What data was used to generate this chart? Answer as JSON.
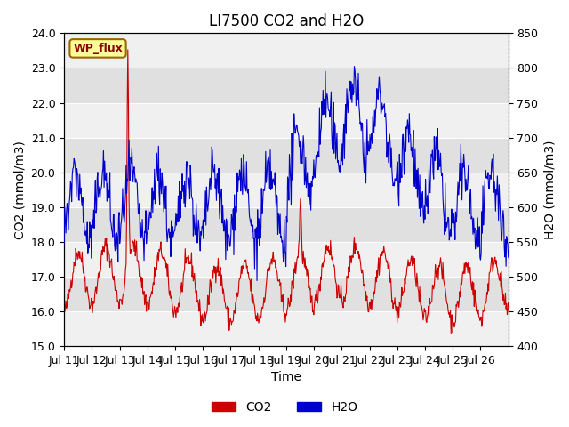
{
  "title": "LI7500 CO2 and H2O",
  "xlabel": "Time",
  "ylabel_left": "CO2 (mmol/m3)",
  "ylabel_right": "H2O (mmol/m3)",
  "co2_ylim": [
    15.0,
    24.0
  ],
  "h2o_ylim": [
    400,
    850
  ],
  "x_tick_labels": [
    "Jul 11",
    "Jul 12",
    "Jul 13",
    "Jul 14",
    "Jul 15",
    "Jul 16",
    "Jul 17",
    "Jul 18",
    "Jul 19",
    "Jul 20",
    "Jul 21",
    "Jul 22",
    "Jul 23",
    "Jul 24",
    "Jul 25",
    "Jul 26"
  ],
  "co2_color": "#cc0000",
  "h2o_color": "#0000cc",
  "background_color": "#ffffff",
  "plot_bg_color": "#e0e0e0",
  "annotation_text": "WP_flux",
  "annotation_bg": "#ffff99",
  "annotation_border": "#996600",
  "legend_co2": "CO2",
  "legend_h2o": "H2O",
  "title_fontsize": 12,
  "axis_fontsize": 10,
  "tick_fontsize": 9
}
